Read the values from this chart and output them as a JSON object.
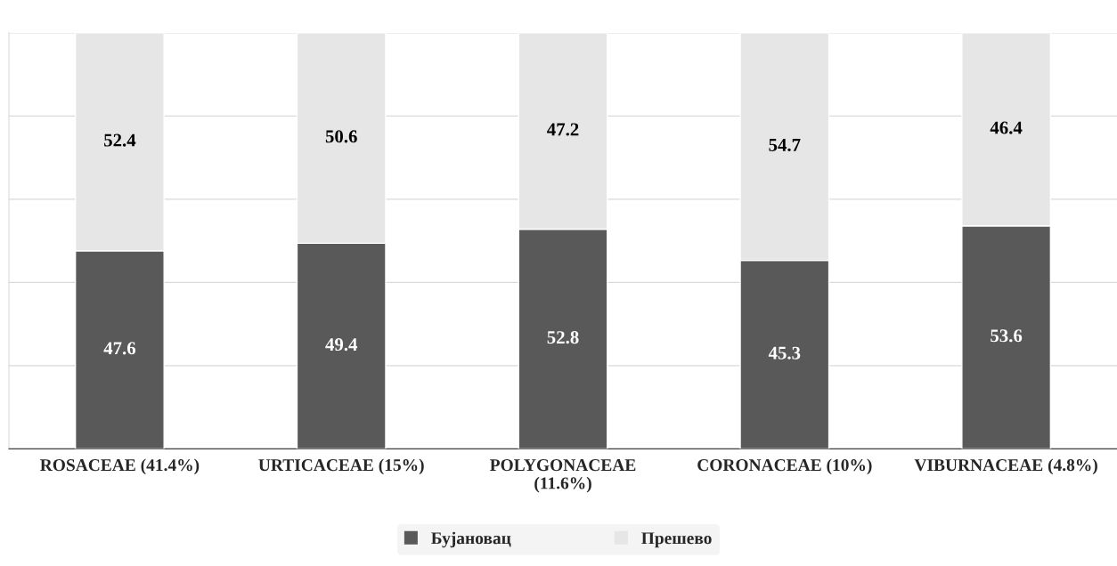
{
  "chart_data": {
    "type": "bar",
    "stacked": true,
    "categories": [
      "ROSACEAE (41.4%)",
      "URTICACEAE (15%)",
      "POLYGONACEAE\n(11.6%)",
      "CORONACEAE (10%)",
      "VIBURNACEAE (4.8%)"
    ],
    "series": [
      {
        "name": "Бујановац",
        "color": "#595959",
        "values": [
          47.6,
          49.4,
          52.8,
          45.3,
          53.6
        ]
      },
      {
        "name": "Прешево",
        "color": "#e6e6e6",
        "values": [
          52.4,
          50.6,
          47.2,
          54.7,
          46.4
        ]
      }
    ],
    "ylim": [
      0,
      100
    ],
    "yticks": [
      {
        "value": 0,
        "label": null
      },
      {
        "value": 20,
        "label": null
      },
      {
        "value": 40,
        "label": null
      },
      {
        "value": 60,
        "label": null
      },
      {
        "value": 80,
        "label": null
      },
      {
        "value": 100,
        "label": null
      }
    ],
    "grid": "y",
    "tick_labels": "x",
    "data_labels": true,
    "legend": "bottom"
  }
}
